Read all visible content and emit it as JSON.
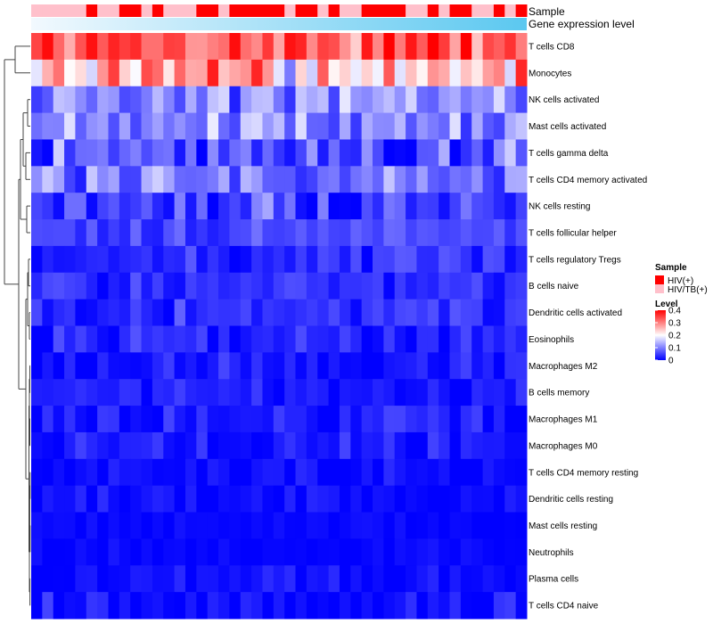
{
  "chart_data": {
    "type": "heatmap",
    "annotations": {
      "sample_label": "Sample",
      "gene_label": "Gene expression level"
    },
    "legend": {
      "sample_title": "Sample",
      "sample_entries": [
        {
          "label": "HIV(+)",
          "color": "#ff0000"
        },
        {
          "label": "HIV/TB(+)",
          "color": "#ffc0cb"
        }
      ],
      "level_title": "Level",
      "level_ticks": [
        "0.4",
        "0.3",
        "0.2",
        "0.1",
        "0"
      ],
      "level_range": [
        0,
        0.4
      ]
    },
    "colors": {
      "low": "#0000ff",
      "mid": "#ffffff",
      "high": "#ff0000",
      "gene_bar_start": "#f2f9fe",
      "gene_bar_end": "#5bc8f0"
    },
    "sample_groups": [
      2,
      2,
      2,
      2,
      2,
      1,
      2,
      2,
      1,
      1,
      2,
      1,
      2,
      2,
      2,
      1,
      1,
      2,
      1,
      1,
      1,
      1,
      1,
      2,
      1,
      1,
      2,
      1,
      2,
      2,
      1,
      1,
      1,
      1,
      2,
      2,
      1,
      2,
      1,
      1,
      2,
      2,
      1,
      2,
      1
    ],
    "rows": [
      "T cells CD8",
      "Monocytes",
      "NK cells activated",
      "Mast cells activated",
      "T cells gamma delta",
      "T cells CD4 memory activated",
      "NK cells resting",
      "T cells follicular helper",
      "T cells regulatory  Tregs",
      "B cells naive",
      "Dendritic cells activated",
      "Eosinophils",
      "Macrophages M2",
      "B cells memory",
      "Macrophages M1",
      "Macrophages M0",
      "T cells CD4 memory resting",
      "Dendritic cells resting",
      "Mast cells resting",
      "Neutrophils",
      "Plasma cells",
      "T cells CD4 naive"
    ],
    "row_means": [
      0.33,
      0.25,
      0.11,
      0.11,
      0.07,
      0.09,
      0.05,
      0.06,
      0.03,
      0.04,
      0.04,
      0.03,
      0.02,
      0.02,
      0.02,
      0.02,
      0.01,
      0.01,
      0.005,
      0.005,
      0.01,
      0.01
    ],
    "row_spread": [
      0.07,
      0.1,
      0.06,
      0.06,
      0.08,
      0.05,
      0.06,
      0.03,
      0.03,
      0.03,
      0.03,
      0.03,
      0.03,
      0.03,
      0.025,
      0.03,
      0.02,
      0.02,
      0.01,
      0.01,
      0.02,
      0.03
    ],
    "n_columns": 45,
    "seed": 7
  }
}
